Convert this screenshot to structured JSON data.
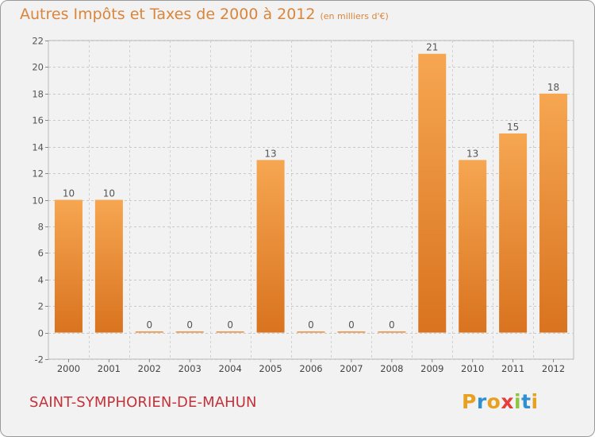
{
  "header": {
    "title": "Autres Impôts et Taxes de 2000 à 2012",
    "unit": "(en milliers d'€)"
  },
  "footer": {
    "commune": "SAINT-SYMPHORIEN-DE-MAHUN",
    "brand": "Proxiti"
  },
  "colors": {
    "title": "#d9853b",
    "commune": "#c4323a",
    "bar_top": "#f6a651",
    "bar_bottom": "#d9731f",
    "background": "#f2f2f2"
  },
  "chart_data": {
    "type": "bar",
    "title": "Autres Impôts et Taxes de 2000 à 2012",
    "subtitle": "(en milliers d'€)",
    "categories": [
      "2000",
      "2001",
      "2002",
      "2003",
      "2004",
      "2005",
      "2006",
      "2007",
      "2008",
      "2009",
      "2010",
      "2011",
      "2012"
    ],
    "values": [
      10,
      10,
      0,
      0,
      0,
      13,
      0,
      0,
      0,
      21,
      13,
      15,
      18
    ],
    "ylim": [
      -2,
      22
    ],
    "yticks": [
      -2,
      0,
      2,
      4,
      6,
      8,
      10,
      12,
      14,
      16,
      18,
      20,
      22
    ],
    "grid": true,
    "legend": "none"
  }
}
